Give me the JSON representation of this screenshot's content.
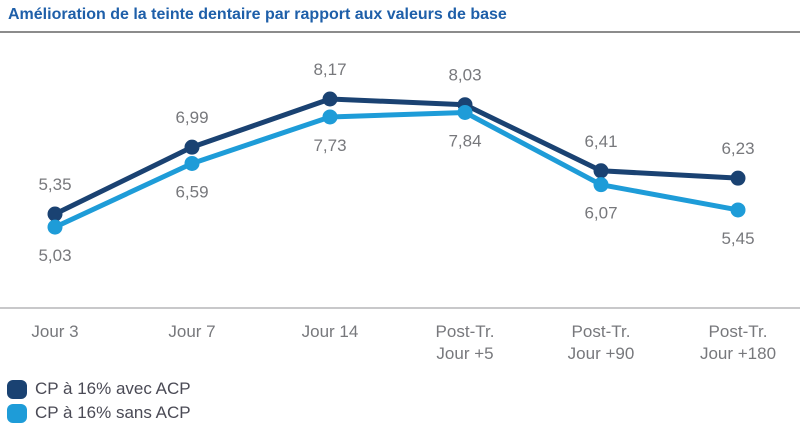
{
  "chart_data": {
    "type": "line",
    "title": "Amélioration de la teinte dentaire par rapport aux valeurs de base",
    "categories": [
      "Jour 3",
      "Jour 7",
      "Jour 14",
      "Post-Tr. Jour +5",
      "Post-Tr. Jour +90",
      "Post-Tr. Jour +180"
    ],
    "categories_lines": [
      [
        "Jour 3"
      ],
      [
        "Jour 7"
      ],
      [
        "Jour 14"
      ],
      [
        "Post-Tr.",
        "Jour +5"
      ],
      [
        "Post-Tr.",
        "Jour +90"
      ],
      [
        "Post-Tr.",
        "Jour +180"
      ]
    ],
    "series": [
      {
        "name": "CP à 16% avec ACP",
        "color": "#1a4272",
        "values": [
          5.35,
          6.99,
          8.17,
          8.03,
          6.41,
          6.23
        ],
        "labels": [
          "5,35",
          "6,99",
          "8,17",
          "8,03",
          "6,41",
          "6,23"
        ],
        "label_position": "above"
      },
      {
        "name": "CP à 16% sans ACP",
        "color": "#1e9cd8",
        "values": [
          5.03,
          6.59,
          7.73,
          7.84,
          6.07,
          5.45
        ],
        "labels": [
          "5,03",
          "6,59",
          "7,73",
          "7,84",
          "6,07",
          "5,45"
        ],
        "label_position": "below"
      }
    ],
    "xlabel": "",
    "ylabel": "",
    "grid": false,
    "legend_position": "bottom-left"
  },
  "colors": {
    "title_blue": "#1e5fa9",
    "title_divider_gray": "#8c8c8c",
    "axis_line_gray": "#c8c8ca",
    "data_label_gray": "#77787c",
    "tick_label_gray": "#77787c",
    "legend_text": "#4a4a55",
    "background": "#ffffff"
  }
}
